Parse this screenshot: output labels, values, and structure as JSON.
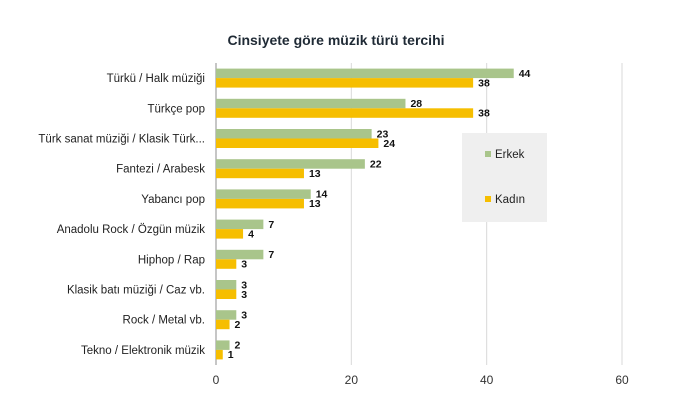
{
  "chart_data": {
    "type": "bar",
    "orientation": "horizontal",
    "title": "Cinsiyete göre müzik türü tercihi",
    "xlabel": "",
    "ylabel": "",
    "xlim": [
      0,
      60
    ],
    "xticks": [
      "0",
      "20",
      "40",
      "60"
    ],
    "grid": true,
    "legend_position": "right",
    "categories": [
      "Türkü / Halk müziği",
      "Türkçe pop",
      "Türk sanat müziği / Klasik Türk...",
      "Fantezi / Arabesk",
      "Yabancı pop",
      "Anadolu Rock / Özgün müzik",
      "Hiphop / Rap",
      "Klasik batı müziği / Caz vb.",
      "Rock / Metal vb.",
      "Tekno / Elektronik müzik"
    ],
    "series": [
      {
        "name": "Erkek",
        "color": "#a9c58b",
        "values": [
          44,
          28,
          23,
          22,
          14,
          7,
          7,
          3,
          3,
          2
        ]
      },
      {
        "name": "Kadın",
        "color": "#f6be00",
        "values": [
          38,
          38,
          24,
          13,
          13,
          4,
          3,
          3,
          2,
          1
        ]
      }
    ]
  }
}
